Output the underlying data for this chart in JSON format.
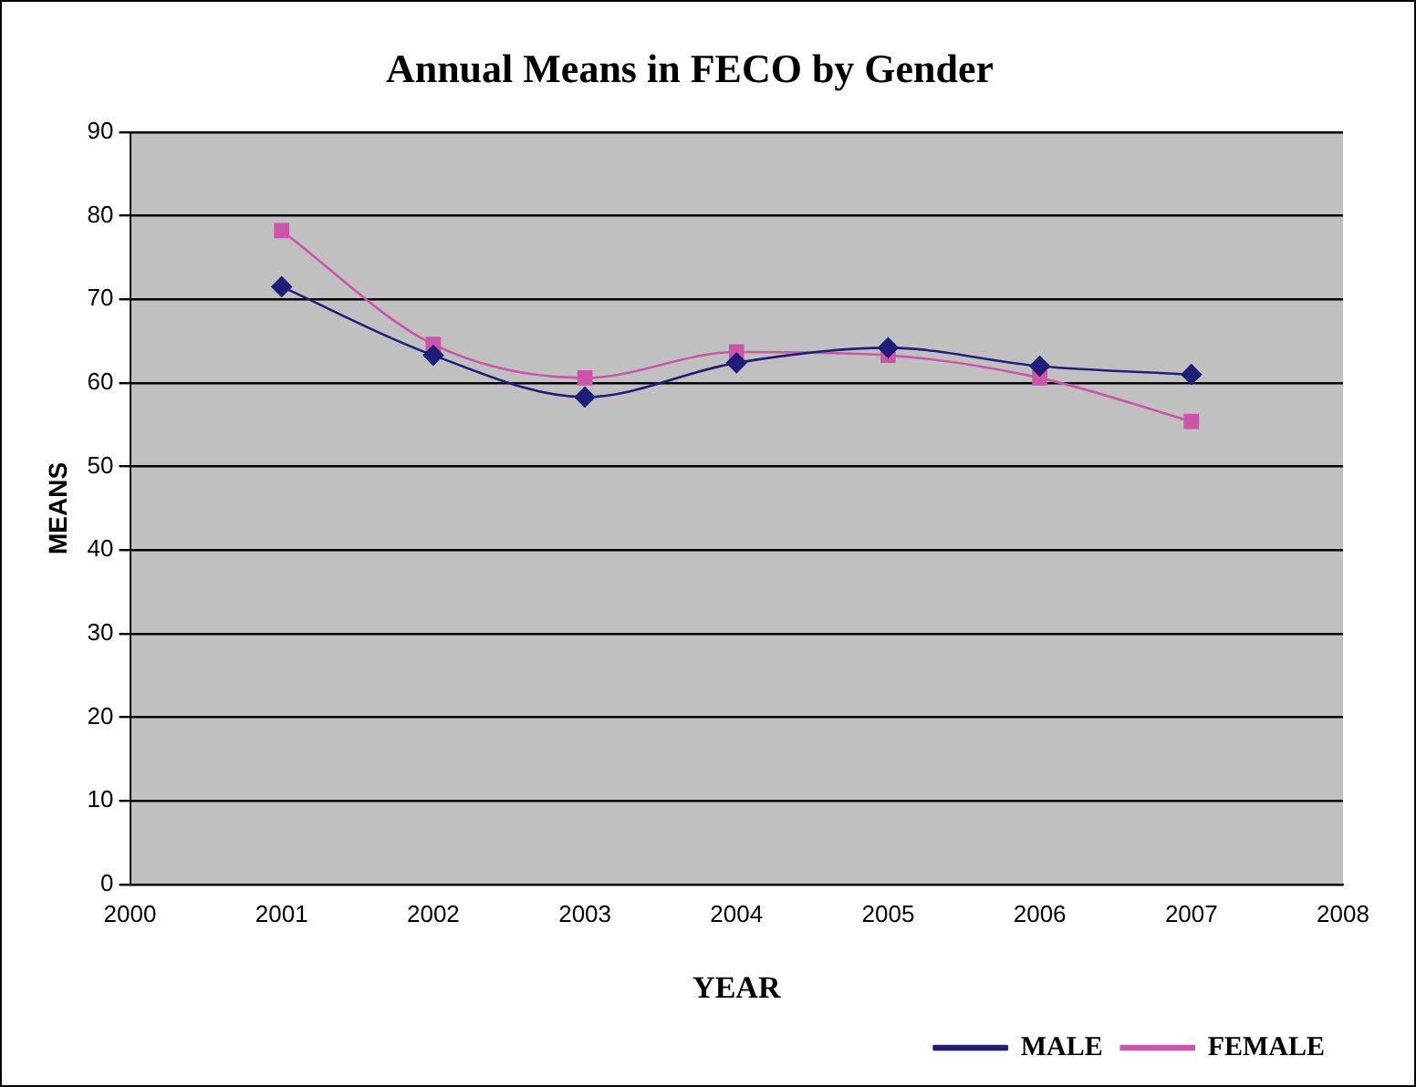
{
  "chart_data": {
    "type": "line",
    "title": "Annual Means in FECO by Gender",
    "xlabel": "YEAR",
    "ylabel": "MEANS",
    "x": [
      2001,
      2002,
      2003,
      2004,
      2005,
      2006,
      2007
    ],
    "series": [
      {
        "name": "MALE",
        "color": "#1f1f7a",
        "marker": "diamond",
        "values": [
          71.5,
          63.3,
          58.3,
          62.4,
          64.2,
          62,
          61
        ]
      },
      {
        "name": "FEMALE",
        "color": "#cc55aa",
        "marker": "square",
        "values": [
          78.2,
          64.6,
          60.6,
          63.7,
          63.3,
          60.6,
          55.4
        ]
      }
    ],
    "xlim": [
      2000,
      2008
    ],
    "xticks": [
      2000,
      2001,
      2002,
      2003,
      2004,
      2005,
      2006,
      2007,
      2008
    ],
    "ylim": [
      0,
      90
    ],
    "yticks": [
      0,
      10,
      20,
      30,
      40,
      50,
      60,
      70,
      80,
      90
    ],
    "grid": "y",
    "legend": "bottom right"
  }
}
